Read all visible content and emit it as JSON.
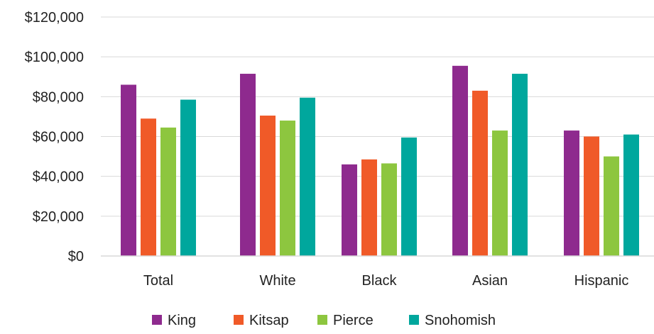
{
  "chart_data": {
    "type": "bar",
    "title": "",
    "xlabel": "",
    "ylabel": "",
    "categories": [
      "Total",
      "White",
      "Black",
      "Asian",
      "Hispanic"
    ],
    "ylim": [
      0,
      120000
    ],
    "yticks": [
      0,
      20000,
      40000,
      60000,
      80000,
      100000,
      120000
    ],
    "ytick_labels": [
      "$0",
      "$20,000",
      "$40,000",
      "$60,000",
      "$80,000",
      "$100,000",
      "$120,000"
    ],
    "grid": true,
    "legend_position": "bottom",
    "series": [
      {
        "name": "King",
        "color": "#8E2A8E",
        "values": [
          86000,
          91500,
          46000,
          95500,
          63000
        ]
      },
      {
        "name": "Kitsap",
        "color": "#F05A28",
        "values": [
          69000,
          70500,
          48500,
          83000,
          60000
        ]
      },
      {
        "name": "Pierce",
        "color": "#8DC63F",
        "values": [
          64500,
          68000,
          46500,
          63000,
          50000
        ]
      },
      {
        "name": "Snohomish",
        "color": "#00A79D",
        "values": [
          78500,
          79500,
          59500,
          91500,
          61000
        ]
      }
    ]
  }
}
